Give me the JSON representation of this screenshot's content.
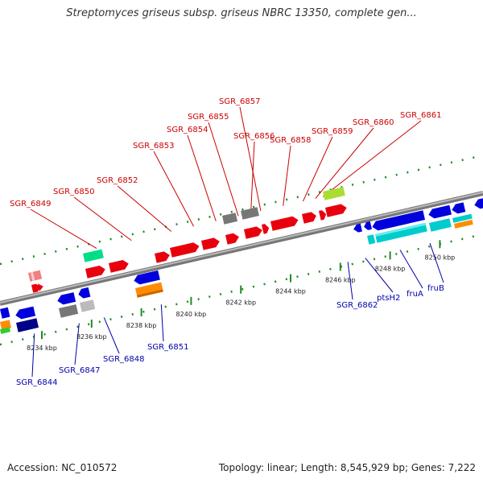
{
  "title": "Streptomyces griseus subsp. griseus NBRC 13350, complete gen...",
  "footer": {
    "accession": "Accession: NC_010572",
    "summary": "Topology: linear; Length: 8,545,929 bp; Genes: 7,222"
  },
  "colors": {
    "forward_label": "#cc0000",
    "reverse_label": "#0000aa",
    "backbone": "#999999",
    "tick": "#228b22"
  },
  "scale_labels": [
    {
      "text": "8234 kbp",
      "at": 8234
    },
    {
      "text": "8236 kbp",
      "at": 8236
    },
    {
      "text": "8238 kbp",
      "at": 8238
    },
    {
      "text": "8240 kbp",
      "at": 8240
    },
    {
      "text": "8242 kbp",
      "at": 8242
    },
    {
      "text": "8244 kbp",
      "at": 8244
    },
    {
      "text": "8246 kbp",
      "at": 8246
    },
    {
      "text": "8248 kbp",
      "at": 8248
    },
    {
      "text": "8250 kbp",
      "at": 8250
    }
  ],
  "forward_labels": [
    {
      "name": "SGR_6849",
      "at": 8236.2
    },
    {
      "name": "SGR_6850",
      "at": 8237.6
    },
    {
      "name": "SGR_6852",
      "at": 8239.2
    },
    {
      "name": "SGR_6853",
      "at": 8240.1
    },
    {
      "name": "SGR_6854",
      "at": 8241.0
    },
    {
      "name": "SGR_6855",
      "at": 8241.9
    },
    {
      "name": "SGR_6856",
      "at": 8242.4
    },
    {
      "name": "SGR_6857",
      "at": 8242.8
    },
    {
      "name": "SGR_6858",
      "at": 8243.7
    },
    {
      "name": "SGR_6859",
      "at": 8244.5
    },
    {
      "name": "SGR_6860",
      "at": 8245.0
    },
    {
      "name": "SGR_6861",
      "at": 8245.3
    }
  ],
  "reverse_labels": [
    {
      "name": "SGR_6844",
      "at": 8233.7
    },
    {
      "name": "SGR_6847",
      "at": 8235.5
    },
    {
      "name": "SGR_6848",
      "at": 8236.5
    },
    {
      "name": "SGR_6851",
      "at": 8238.8
    },
    {
      "name": "SGR_6862",
      "at": 8246.3
    },
    {
      "name": "ptsH2",
      "at": 8247.0
    },
    {
      "name": "fruA",
      "at": 8248.4
    },
    {
      "name": "fruB",
      "at": 8249.6
    }
  ]
}
